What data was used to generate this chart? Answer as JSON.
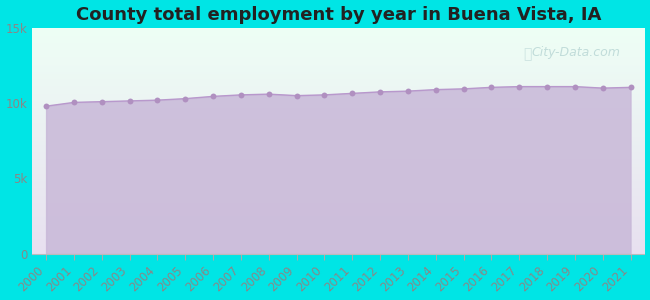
{
  "title": "County total employment by year in Buena Vista, IA",
  "years": [
    2000,
    2001,
    2002,
    2003,
    2004,
    2005,
    2006,
    2007,
    2008,
    2009,
    2010,
    2011,
    2012,
    2013,
    2014,
    2015,
    2016,
    2017,
    2018,
    2019,
    2020,
    2021
  ],
  "values": [
    9800,
    10050,
    10100,
    10150,
    10200,
    10300,
    10450,
    10550,
    10600,
    10500,
    10550,
    10650,
    10750,
    10800,
    10900,
    10950,
    11050,
    11100,
    11100,
    11100,
    11000,
    11050
  ],
  "background_color": "#00e5e5",
  "plot_bg_top": "#eefff5",
  "plot_bg_bottom": "#e8e0f0",
  "fill_color": "#c8b8d8",
  "fill_alpha": 0.85,
  "line_color": "#b898cc",
  "marker_color": "#b090c0",
  "marker_size": 18,
  "title_color": "#222222",
  "tick_color": "#888888",
  "ylim": [
    0,
    15000
  ],
  "yticks": [
    0,
    5000,
    10000,
    15000
  ],
  "ytick_labels": [
    "0",
    "5k",
    "10k",
    "15k"
  ],
  "title_fontsize": 13,
  "tick_fontsize": 8.5,
  "watermark": "City-Data.com",
  "watermark_color": "#aacccc",
  "watermark_alpha": 0.65,
  "watermark_fontsize": 9
}
